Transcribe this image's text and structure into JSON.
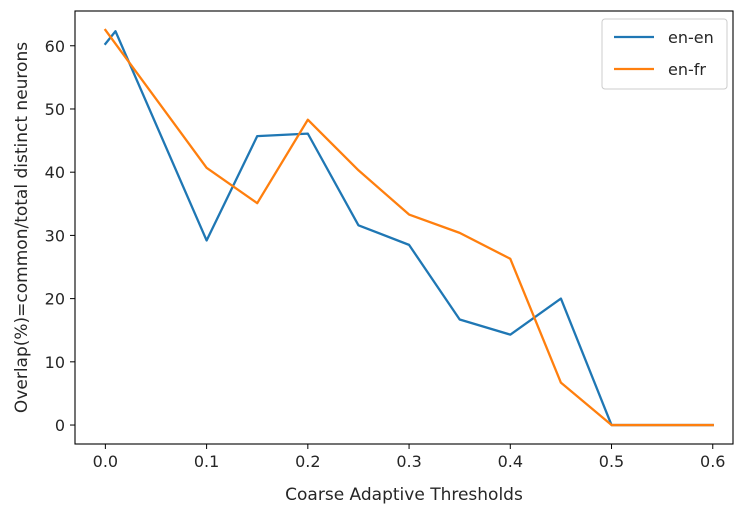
{
  "chart_data": {
    "type": "line",
    "xlabel": "Coarse Adaptive Thresholds",
    "ylabel": "Overlap(%)=common/total distinct neurons",
    "xlim": [
      -0.03,
      0.62
    ],
    "ylim": [
      -3,
      65.5
    ],
    "xticks": [
      0.0,
      0.1,
      0.2,
      0.3,
      0.4,
      0.5,
      0.6
    ],
    "xtick_labels": [
      "0.0",
      "0.1",
      "0.2",
      "0.3",
      "0.4",
      "0.5",
      "0.6"
    ],
    "yticks": [
      0,
      10,
      20,
      30,
      40,
      50,
      60
    ],
    "ytick_labels": [
      "0",
      "10",
      "20",
      "30",
      "40",
      "50",
      "60"
    ],
    "grid": false,
    "legend_position": "top-right",
    "series": [
      {
        "name": "en-en",
        "color": "#1f77b4",
        "x": [
          0.0,
          0.01,
          0.1,
          0.15,
          0.2,
          0.25,
          0.3,
          0.35,
          0.4,
          0.45,
          0.5,
          0.55,
          0.6
        ],
        "y": [
          60.3,
          62.3,
          29.2,
          45.7,
          46.1,
          31.6,
          28.5,
          16.7,
          14.3,
          20.0,
          0.0,
          0.0,
          0.0
        ]
      },
      {
        "name": "en-fr",
        "color": "#ff7f0e",
        "x": [
          0.0,
          0.1,
          0.15,
          0.2,
          0.25,
          0.3,
          0.35,
          0.4,
          0.45,
          0.5,
          0.55,
          0.6
        ],
        "y": [
          62.5,
          40.7,
          35.1,
          48.3,
          40.3,
          33.3,
          30.4,
          26.3,
          6.7,
          0.0,
          0.0,
          0.0
        ]
      }
    ]
  }
}
